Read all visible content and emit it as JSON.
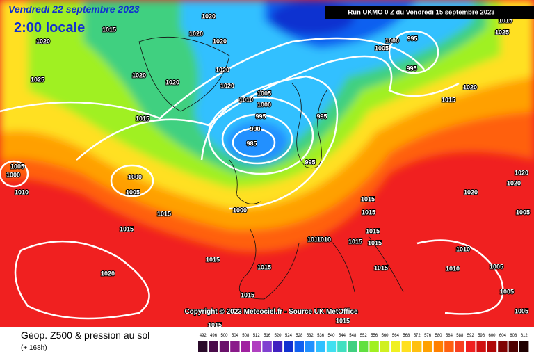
{
  "header": {
    "date": "Vendredi 22 septembre 2023",
    "time": "2:00 locale",
    "run": "Run UKMO 0 Z du Vendredi 15 septembre 2023"
  },
  "map": {
    "copyright": "Copyright © 2023 Meteociel.fr - Source UK MetOffice",
    "isobar_labels": [
      1020,
      1015,
      1020,
      1020,
      1020,
      1020,
      1020,
      1020,
      1020,
      1025,
      1005,
      1010,
      1000,
      995,
      990,
      985,
      995,
      995,
      1000,
      995,
      995,
      1005,
      1020,
      1015,
      1025,
      1015,
      1015,
      1005,
      1000,
      1010,
      1000,
      1005,
      1015,
      1000,
      1015,
      1015,
      1015,
      1010,
      1010,
      1015,
      1015,
      1015,
      1015,
      1015,
      1020,
      1015,
      1015,
      1010,
      1010,
      1005,
      1020,
      1020,
      1020,
      1005,
      1005,
      1005,
      1015,
      1015
    ]
  },
  "legend": {
    "title": "Géop. Z500 & pression au sol",
    "lead": "(+ 168h)",
    "scale": [
      492,
      496,
      500,
      504,
      508,
      512,
      516,
      520,
      524,
      528,
      532,
      536,
      540,
      544,
      548,
      552,
      556,
      560,
      564,
      568,
      572,
      576,
      580,
      584,
      588,
      592,
      596,
      600,
      604,
      608,
      612
    ],
    "colors": [
      "#2a0a2a",
      "#4a0a4a",
      "#6a106a",
      "#8a1a8a",
      "#a020a0",
      "#b040c0",
      "#8040d0",
      "#4020c0",
      "#1030d0",
      "#1060f0",
      "#2090ff",
      "#30c0ff",
      "#40e0f0",
      "#40e0c0",
      "#40d080",
      "#60e040",
      "#a0f020",
      "#d0f020",
      "#f0f020",
      "#ffe020",
      "#ffc010",
      "#ffa000",
      "#ff8000",
      "#ff6010",
      "#f84020",
      "#f02020",
      "#d01010",
      "#b00808",
      "#800404",
      "#500202",
      "#200000"
    ]
  }
}
